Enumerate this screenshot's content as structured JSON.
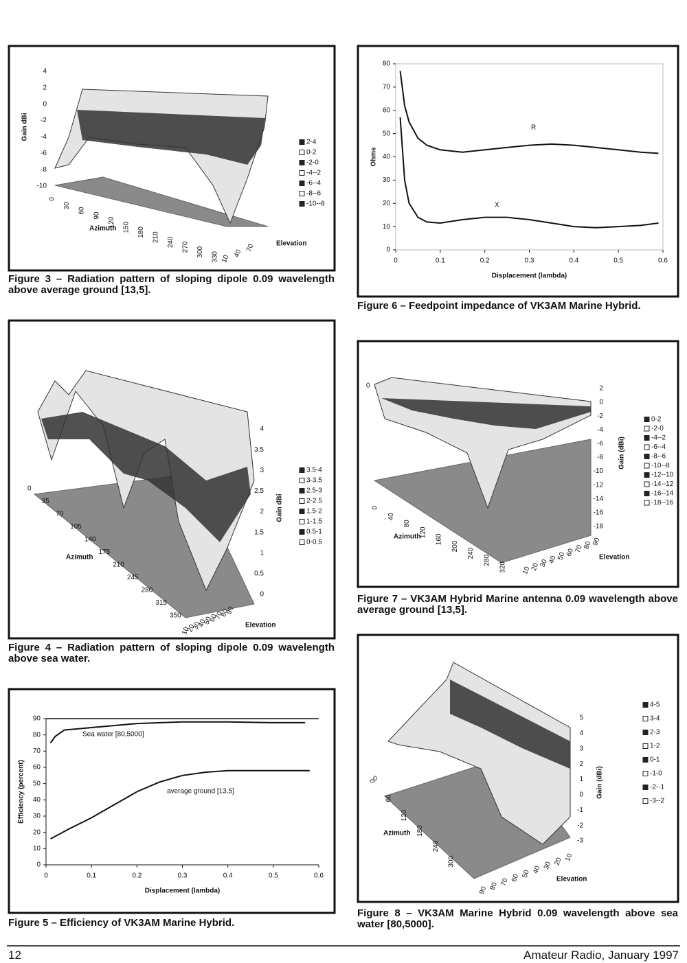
{
  "page": {
    "number": "12",
    "footer": "Amateur Radio, January 1997"
  },
  "figures": [
    {
      "caption": "Figure 3 – Radiation pattern of sloping dipole 0.09 wavelength above average ground [13,5].",
      "z_title": "Gain dBi",
      "z_ticks": [
        "4",
        "2",
        "0",
        "-2",
        "-4",
        "-6",
        "-8",
        "-10"
      ],
      "azimuth_title": "Azimuth",
      "azimuth_ticks": [
        "0",
        "30",
        "60",
        "90",
        "120",
        "150",
        "180",
        "210",
        "240",
        "270",
        "300",
        "330"
      ],
      "elevation_title": "Elevation",
      "elevation_ticks": [
        "10",
        "40",
        "70"
      ],
      "legend": [
        "2-4",
        "0-2",
        "-2-0",
        "-4--2",
        "-6--4",
        "-8--6",
        "-10--8"
      ]
    },
    {
      "caption": "Figure 4 – Radiation pattern of sloping dipole 0.09 wavelength above sea water.",
      "z_title": "Gain dBi",
      "z_ticks": [
        "4",
        "3.5",
        "3",
        "2.5",
        "2",
        "1.5",
        "1",
        "0.5",
        "0"
      ],
      "azimuth_title": "Azimuth",
      "azimuth_ticks": [
        "0",
        "35",
        "70",
        "105",
        "140",
        "175",
        "210",
        "245",
        "280",
        "315",
        "350"
      ],
      "elevation_title": "Elevation",
      "elevation_ticks": [
        "10",
        "20",
        "30",
        "40",
        "50",
        "60",
        "70",
        "80",
        "90"
      ],
      "legend": [
        "3.5-4",
        "3-3.5",
        "2.5-3",
        "2-2.5",
        "1.5-2",
        "1-1.5",
        "0.5-1",
        "0-0.5"
      ]
    },
    {
      "caption": "Figure 7 – VK3AM Hybrid Marine antenna 0.09 wavelength above average ground [13,5].",
      "z_title": "Gain (dBi)",
      "z_ticks": [
        "2",
        "0",
        "-2",
        "-4",
        "-6",
        "-8",
        "-10",
        "-12",
        "-14",
        "-16",
        "-18"
      ],
      "azimuth_title": "Azimuth",
      "azimuth_ticks": [
        "0",
        "40",
        "80",
        "120",
        "160",
        "200",
        "240",
        "280",
        "320"
      ],
      "elevation_title": "Elevation",
      "elevation_ticks": [
        "10",
        "20",
        "30",
        "40",
        "50",
        "60",
        "70",
        "80",
        "90"
      ],
      "legend": [
        "0-2",
        "-2-0",
        "-4--2",
        "-6--4",
        "-8--6",
        "-10--8",
        "-12--10",
        "-14--12",
        "-16--14",
        "-18--16"
      ]
    },
    {
      "caption": "Figure 8 – VK3AM Marine Hybrid 0.09 wavelength above sea water [80,5000].",
      "z_title": "Gain (dBi)",
      "z_ticks": [
        "5",
        "4",
        "3",
        "2",
        "1",
        "0",
        "-1",
        "-2",
        "-3"
      ],
      "azimuth_title": "Azimuth",
      "azimuth_ticks": [
        "0",
        "60",
        "120",
        "180",
        "240",
        "300"
      ],
      "elevation_title": "Elevation",
      "elevation_ticks": [
        "90",
        "80",
        "70",
        "60",
        "50",
        "40",
        "30",
        "20",
        "10"
      ],
      "legend": [
        "4-5",
        "3-4",
        "2-3",
        "1-2",
        "0-1",
        "-1-0",
        "-2--1",
        "-3--2"
      ]
    }
  ],
  "chart_data": [
    {
      "type": "line",
      "caption": "Figure 6 – Feedpoint impedance of VK3AM Marine Hybrid.",
      "x_label": "Displacement (lambda)",
      "y_label": "Ohms",
      "xlim": [
        0,
        0.6
      ],
      "xticks": [
        0,
        0.1,
        0.2,
        0.3,
        0.4,
        0.5,
        0.6
      ],
      "ylim": [
        0,
        80
      ],
      "yticks": [
        0,
        10,
        20,
        30,
        40,
        50,
        60,
        70,
        80
      ],
      "series": [
        {
          "name": "R",
          "color": "#111111",
          "x": [
            0.01,
            0.02,
            0.03,
            0.05,
            0.07,
            0.1,
            0.15,
            0.2,
            0.25,
            0.3,
            0.35,
            0.4,
            0.45,
            0.5,
            0.55,
            0.59
          ],
          "values": [
            77,
            62,
            55,
            48,
            45,
            43,
            42,
            43,
            44,
            45,
            45.5,
            45,
            44,
            43,
            42,
            41.5
          ]
        },
        {
          "name": "X",
          "color": "#111111",
          "x": [
            0.01,
            0.02,
            0.03,
            0.05,
            0.07,
            0.1,
            0.15,
            0.2,
            0.25,
            0.3,
            0.35,
            0.4,
            0.45,
            0.5,
            0.55,
            0.59
          ],
          "values": [
            57,
            30,
            20,
            14,
            12,
            11.5,
            13,
            14,
            14,
            13,
            11.5,
            10,
            9.5,
            10,
            10.5,
            11.5
          ]
        }
      ]
    },
    {
      "type": "line",
      "caption": "Figure 5 – Efficiency of VK3AM Marine Hybrid.",
      "x_label": "Displacement (lambda)",
      "y_label": "Efficiency (percent)",
      "xlim": [
        0,
        0.6
      ],
      "xticks": [
        0,
        0.1,
        0.2,
        0.3,
        0.4,
        0.5,
        0.6
      ],
      "ylim": [
        0,
        90
      ],
      "yticks": [
        0,
        10,
        20,
        30,
        40,
        50,
        60,
        70,
        80,
        90
      ],
      "series": [
        {
          "name": "Sea water [80,5000]",
          "color": "#111111",
          "x": [
            0.01,
            0.02,
            0.04,
            0.1,
            0.2,
            0.3,
            0.4,
            0.5,
            0.57
          ],
          "values": [
            75,
            79,
            83,
            84.5,
            87,
            88,
            88,
            87.5,
            87.5
          ]
        },
        {
          "name": "average ground [13,5]",
          "color": "#111111",
          "x": [
            0.01,
            0.05,
            0.1,
            0.15,
            0.2,
            0.25,
            0.3,
            0.35,
            0.4,
            0.5,
            0.58
          ],
          "values": [
            16,
            22,
            29,
            37,
            45,
            51,
            55,
            57,
            58,
            58,
            58
          ]
        }
      ]
    }
  ]
}
